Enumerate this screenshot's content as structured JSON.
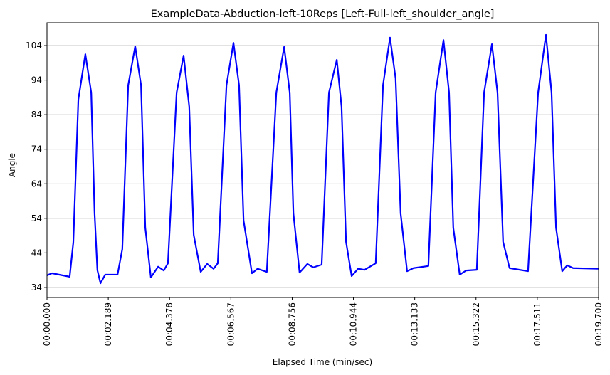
{
  "chart_data": {
    "type": "line",
    "title": "ExampleData-Abduction-left-10Reps [Left-Full-left_shoulder_angle]",
    "xlabel": "Elapsed Time (min/sec)",
    "ylabel": "Angle",
    "x": [
      0,
      0.18,
      0.81,
      0.94,
      1.12,
      1.37,
      1.58,
      1.7,
      1.8,
      1.91,
      2.08,
      2.52,
      2.69,
      2.9,
      3.15,
      3.36,
      3.51,
      3.71,
      3.97,
      4.17,
      4.32,
      4.63,
      4.88,
      5.08,
      5.24,
      5.49,
      5.72,
      5.95,
      6.1,
      6.41,
      6.66,
      6.86,
      7.02,
      7.32,
      7.52,
      7.85,
      8.19,
      8.47,
      8.67,
      8.8,
      9.02,
      9.3,
      9.51,
      9.81,
      10.07,
      10.35,
      10.52,
      10.68,
      10.88,
      11.11,
      11.34,
      11.74,
      12.0,
      12.25,
      12.45,
      12.63,
      12.86,
      13.09,
      13.62,
      13.88,
      14.16,
      14.36,
      14.51,
      14.74,
      14.97,
      15.35,
      15.61,
      15.89,
      16.09,
      16.29,
      16.52,
      17.18,
      17.54,
      17.82,
      18.02,
      18.18,
      18.4,
      18.58,
      18.79,
      19.7
    ],
    "series": [
      {
        "name": "left_shoulder_angle",
        "color": "#0000ff",
        "values": [
          37.5,
          38.1,
          37.1,
          47,
          88.4,
          101.5,
          90.4,
          55.4,
          39,
          35.2,
          37.7,
          37.7,
          45.1,
          92.5,
          103.8,
          92.5,
          51.3,
          36.9,
          40,
          38.9,
          41,
          90.4,
          101.1,
          86.3,
          49.2,
          38.5,
          40.8,
          39.4,
          41,
          92.5,
          104.8,
          92.5,
          53.4,
          38.1,
          39.4,
          38.5,
          90.4,
          103.6,
          90.4,
          55.4,
          38.3,
          40.8,
          39.8,
          40.6,
          90.4,
          99.9,
          86.3,
          47.2,
          37.3,
          39.4,
          39.1,
          41,
          92.5,
          106.3,
          94.5,
          55.4,
          38.7,
          39.6,
          40.2,
          90.4,
          105.6,
          90.4,
          51.3,
          37.7,
          38.9,
          39.1,
          90.4,
          104.4,
          90.4,
          47.2,
          39.6,
          38.7,
          90.4,
          107.1,
          90.4,
          51.3,
          38.7,
          40.4,
          39.6,
          39.4
        ]
      }
    ],
    "xlim": [
      0,
      19.7
    ],
    "xticks": [
      {
        "value": 0,
        "label": "00:00.000"
      },
      {
        "value": 2.189,
        "label": "00:02.189"
      },
      {
        "value": 4.378,
        "label": "00:04.378"
      },
      {
        "value": 6.567,
        "label": "00:06.567"
      },
      {
        "value": 8.756,
        "label": "00:08.756"
      },
      {
        "value": 10.944,
        "label": "00:10.944"
      },
      {
        "value": 13.133,
        "label": "00:13.133"
      },
      {
        "value": 15.322,
        "label": "00:15.322"
      },
      {
        "value": 17.511,
        "label": "00:17.511"
      },
      {
        "value": 19.7,
        "label": "00:19.700"
      }
    ],
    "ylim": [
      31.1,
      110.6
    ],
    "yticks": [
      34,
      44,
      54,
      64,
      74,
      84,
      94,
      104
    ],
    "grid": "y"
  }
}
